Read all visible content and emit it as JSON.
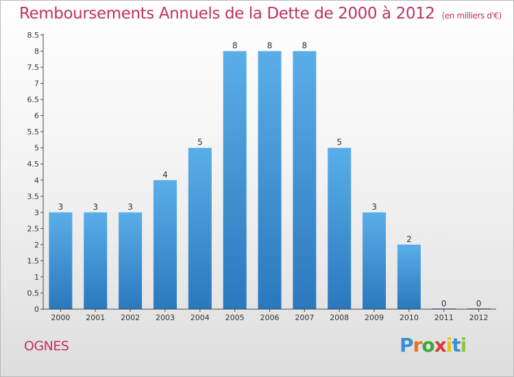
{
  "title": "Remboursements Annuels de la Dette de 2000 à 2012",
  "subtitle": "(en milliers d'€)",
  "commune": "OGNES",
  "brand": {
    "letters": [
      {
        "ch": "P",
        "color": "#3a8fd8"
      },
      {
        "ch": "r",
        "color": "#e8731c"
      },
      {
        "ch": "o",
        "color": "#3aa83a"
      },
      {
        "ch": "x",
        "color": "#d83a3a"
      },
      {
        "ch": "i",
        "color": "#e8c31c"
      },
      {
        "ch": "t",
        "color": "#3a8fd8"
      },
      {
        "ch": "i",
        "color": "#8ec43a"
      }
    ]
  },
  "colors": {
    "bar_top": "#5aaee8",
    "bar_bottom": "#2a78be",
    "accent": "#c0325e",
    "axis_text": "#333333"
  },
  "chart_data": {
    "type": "bar",
    "title": "Remboursements Annuels de la Dette de 2000 à 2012",
    "subtitle": "(en milliers d'€)",
    "categories": [
      "2000",
      "2001",
      "2002",
      "2003",
      "2004",
      "2005",
      "2006",
      "2007",
      "2008",
      "2009",
      "2010",
      "2011",
      "2012"
    ],
    "values": [
      3,
      3,
      3,
      4,
      5,
      8,
      8,
      8,
      5,
      3,
      2,
      0,
      0
    ],
    "value_labels": [
      "3",
      "3",
      "3",
      "4",
      "5",
      "8",
      "8",
      "8",
      "5",
      "3",
      "2",
      "0",
      "0"
    ],
    "ylim": [
      0,
      8.5
    ],
    "yticks": [
      0,
      0.5,
      1,
      1.5,
      2,
      2.5,
      3,
      3.5,
      4,
      4.5,
      5,
      5.5,
      6,
      6.5,
      7,
      7.5,
      8,
      8.5
    ],
    "ytick_labels": [
      "0",
      "0.5",
      "1",
      "1.5",
      "2",
      "2.5",
      "3",
      "3.5",
      "4",
      "4.5",
      "5",
      "5.5",
      "6",
      "6.5",
      "7",
      "7.5",
      "8",
      "8.5"
    ],
    "grid": false,
    "legend": "none",
    "xlabel": "",
    "ylabel": ""
  }
}
